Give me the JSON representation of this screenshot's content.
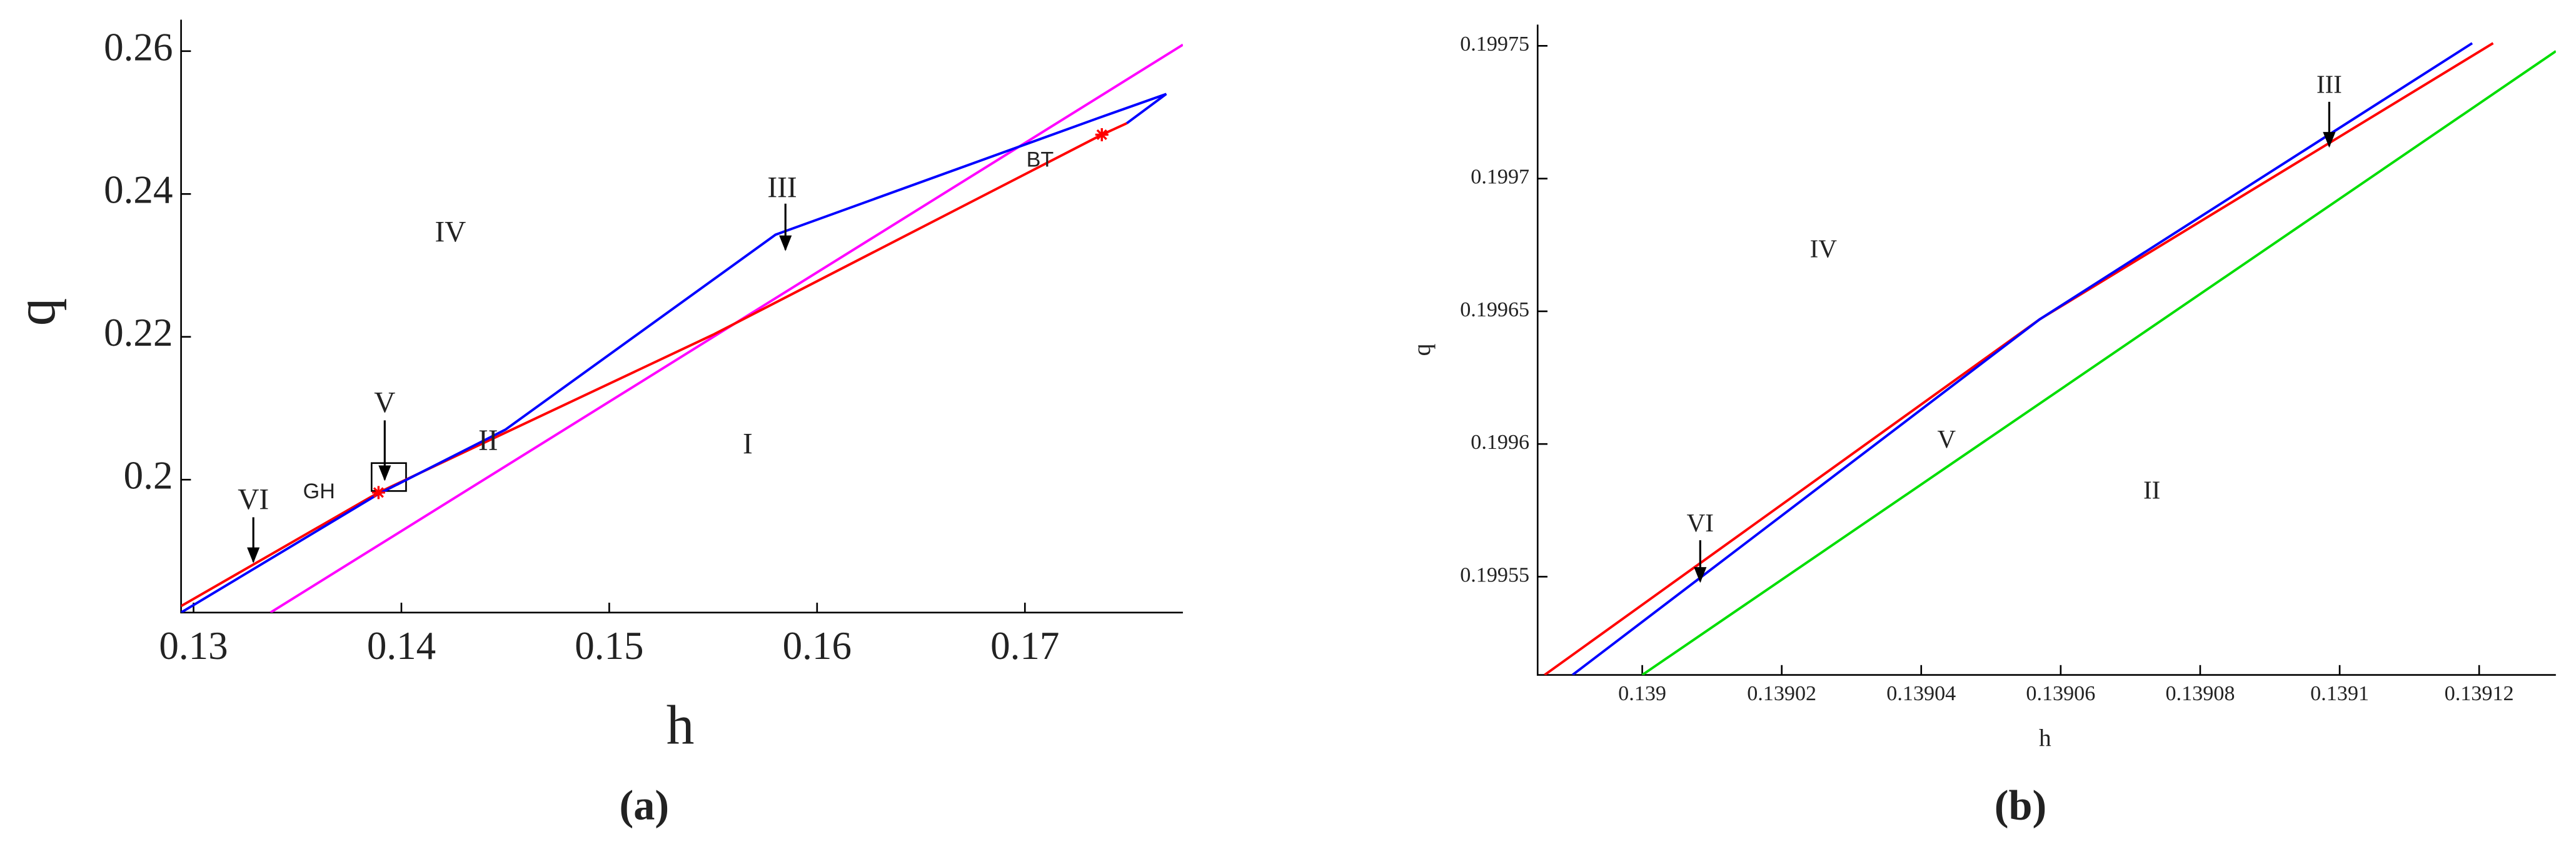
{
  "chart_data": [
    {
      "type": "line",
      "caption": "(a)",
      "xlabel": "h",
      "ylabel": "q",
      "xlim": [
        0.1294,
        0.1776
      ],
      "ylim": [
        0.1814,
        0.2644
      ],
      "xticks": [
        0.13,
        0.14,
        0.15,
        0.16,
        0.17
      ],
      "yticks": [
        0.2,
        0.22,
        0.24,
        0.26
      ],
      "series": [
        {
          "color": "#ff00ff",
          "x": [
            0.1337,
            0.1776
          ],
          "values": [
            0.1814,
            0.2609
          ]
        },
        {
          "color": "#ff0000",
          "x": [
            0.1294,
            0.1389,
            0.155,
            0.1737,
            0.1749
          ],
          "values": [
            0.1823,
            0.1982,
            0.2203,
            0.2483,
            0.2499
          ]
        },
        {
          "color": "#0000ff",
          "x": [
            0.1294,
            0.1389,
            0.145,
            0.158,
            0.1735,
            0.1768,
            0.1749
          ],
          "values": [
            0.1814,
            0.198,
            0.207,
            0.2343,
            0.2506,
            0.254,
            0.2499
          ]
        },
        {
          "color": "#ff0000",
          "marker": "*",
          "x": [
            0.1389,
            0.1737
          ],
          "values": [
            0.1982,
            0.2483
          ]
        }
      ],
      "annotations": [
        "IV",
        "III",
        "V",
        "II",
        "I",
        "VI",
        "GH",
        "BT"
      ]
    },
    {
      "type": "line",
      "caption": "(b)",
      "xlabel": "h",
      "ylabel": "q",
      "xlim": [
        0.138985,
        0.139131
      ],
      "ylim": [
        0.199513,
        0.199758
      ],
      "xticks": [
        0.139,
        0.13902,
        0.13904,
        0.13906,
        0.13908,
        0.1391,
        0.13912
      ],
      "yticks": [
        0.19955,
        0.1996,
        0.19965,
        0.1997,
        0.19975
      ],
      "series": [
        {
          "color": "#00dd00",
          "x": [
            0.139,
            0.139131
          ],
          "values": [
            0.199513,
            0.199748
          ]
        },
        {
          "color": "#ff0000",
          "x": [
            0.138986,
            0.139057,
            0.139122
          ],
          "values": [
            0.199513,
            0.199647,
            0.199751
          ]
        },
        {
          "color": "#0000ff",
          "x": [
            0.13899,
            0.139057,
            0.139119
          ],
          "values": [
            0.199513,
            0.199647,
            0.199751
          ]
        }
      ],
      "annotations": [
        "IV",
        "III",
        "V",
        "II",
        "VI"
      ]
    }
  ]
}
